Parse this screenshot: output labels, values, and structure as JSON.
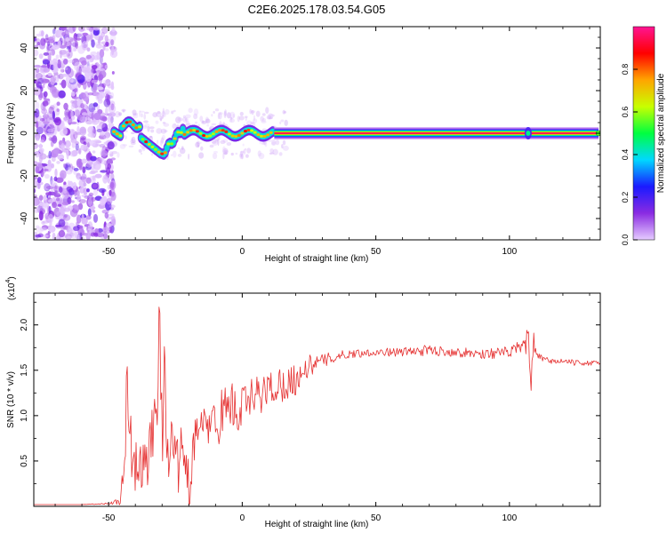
{
  "title": "C2E6.2025.178.03.54.G05",
  "chart_data": [
    {
      "type": "heatmap",
      "xlabel": "Height of straight line (km)",
      "ylabel": "Frequency (Hz)",
      "xlim": [
        -78,
        134
      ],
      "ylim": [
        -50,
        50
      ],
      "xticks": [
        -50,
        0,
        50,
        100
      ],
      "yticks": [
        -40,
        -20,
        0,
        20,
        40
      ],
      "colorbar": {
        "label": "Normalized spectral amplitude",
        "range": [
          0,
          1
        ],
        "ticks": [
          "0.0",
          "0.2",
          "0.4",
          "0.6",
          "0.8"
        ],
        "colors": [
          "#e6ccff",
          "#8a2be2",
          "#1a1aff",
          "#00d8ff",
          "#00ff40",
          "#c8ff00",
          "#ffa500",
          "#ff0000",
          "#ff1493"
        ]
      },
      "features": {
        "noise_region_km": [
          -78,
          -50
        ],
        "main_line_freq_hz": 0,
        "main_line_start_km": -48,
        "line_end_km": 134,
        "wiggle_region_km": [
          -45,
          -18
        ],
        "wiggle_min_freq_hz": -10,
        "wiggle_max_freq_hz": 5,
        "blip_km": 107
      }
    },
    {
      "type": "line",
      "xlabel": "Height of straight line (km)",
      "ylabel": "SNR (10 * v/v)",
      "exponent_label": "(x10",
      "exponent_power": "4",
      "exponent_close": ")",
      "xlim": [
        -78,
        134
      ],
      "ylim": [
        0,
        2.35
      ],
      "xticks": [
        -50,
        0,
        50,
        100
      ],
      "yticks": [
        "0.5",
        "1.0",
        "1.5",
        "2.0"
      ],
      "series": [
        {
          "color": "#e53030",
          "x": [
            -78,
            -60,
            -50,
            -46,
            -44,
            -43,
            -42,
            -41,
            -40,
            -38,
            -36,
            -34,
            -32,
            -31,
            -30,
            -29,
            -28,
            -26,
            -24,
            -22,
            -20,
            -18,
            -16,
            -14,
            -12,
            -10,
            -8,
            -6,
            -4,
            -2,
            0,
            5,
            10,
            15,
            20,
            25,
            30,
            35,
            40,
            50,
            60,
            70,
            80,
            90,
            100,
            105,
            107,
            108,
            109,
            110,
            115,
            120,
            125,
            130,
            134
          ],
          "y": [
            0.02,
            0.02,
            0.03,
            0.05,
            0.4,
            1.55,
            0.8,
            0.3,
            0.45,
            0.5,
            0.4,
            0.7,
            1.1,
            2.3,
            0.8,
            1.4,
            0.6,
            0.9,
            0.4,
            0.7,
            0.2,
            0.75,
            0.8,
            0.9,
            0.95,
            0.9,
            1.0,
            1.1,
            1.15,
            1.0,
            1.1,
            1.2,
            1.3,
            1.35,
            1.4,
            1.55,
            1.6,
            1.65,
            1.68,
            1.7,
            1.7,
            1.72,
            1.7,
            1.68,
            1.7,
            1.75,
            1.85,
            1.3,
            1.85,
            1.65,
            1.6,
            1.6,
            1.58,
            1.58,
            1.57
          ],
          "noise_amplitude": [
            0.0,
            0.0,
            0.01,
            0.05,
            0.2,
            0.5,
            0.4,
            0.3,
            0.35,
            0.3,
            0.3,
            0.35,
            0.5,
            0.4,
            0.5,
            0.45,
            0.4,
            0.3,
            0.3,
            0.3,
            0.3,
            0.25,
            0.25,
            0.25,
            0.3,
            0.25,
            0.3,
            0.3,
            0.25,
            0.3,
            0.25,
            0.25,
            0.2,
            0.2,
            0.18,
            0.12,
            0.08,
            0.06,
            0.05,
            0.04,
            0.05,
            0.06,
            0.05,
            0.06,
            0.06,
            0.1,
            0.15,
            0.12,
            0.1,
            0.05,
            0.03,
            0.03,
            0.03,
            0.03,
            0.03
          ]
        }
      ]
    }
  ]
}
